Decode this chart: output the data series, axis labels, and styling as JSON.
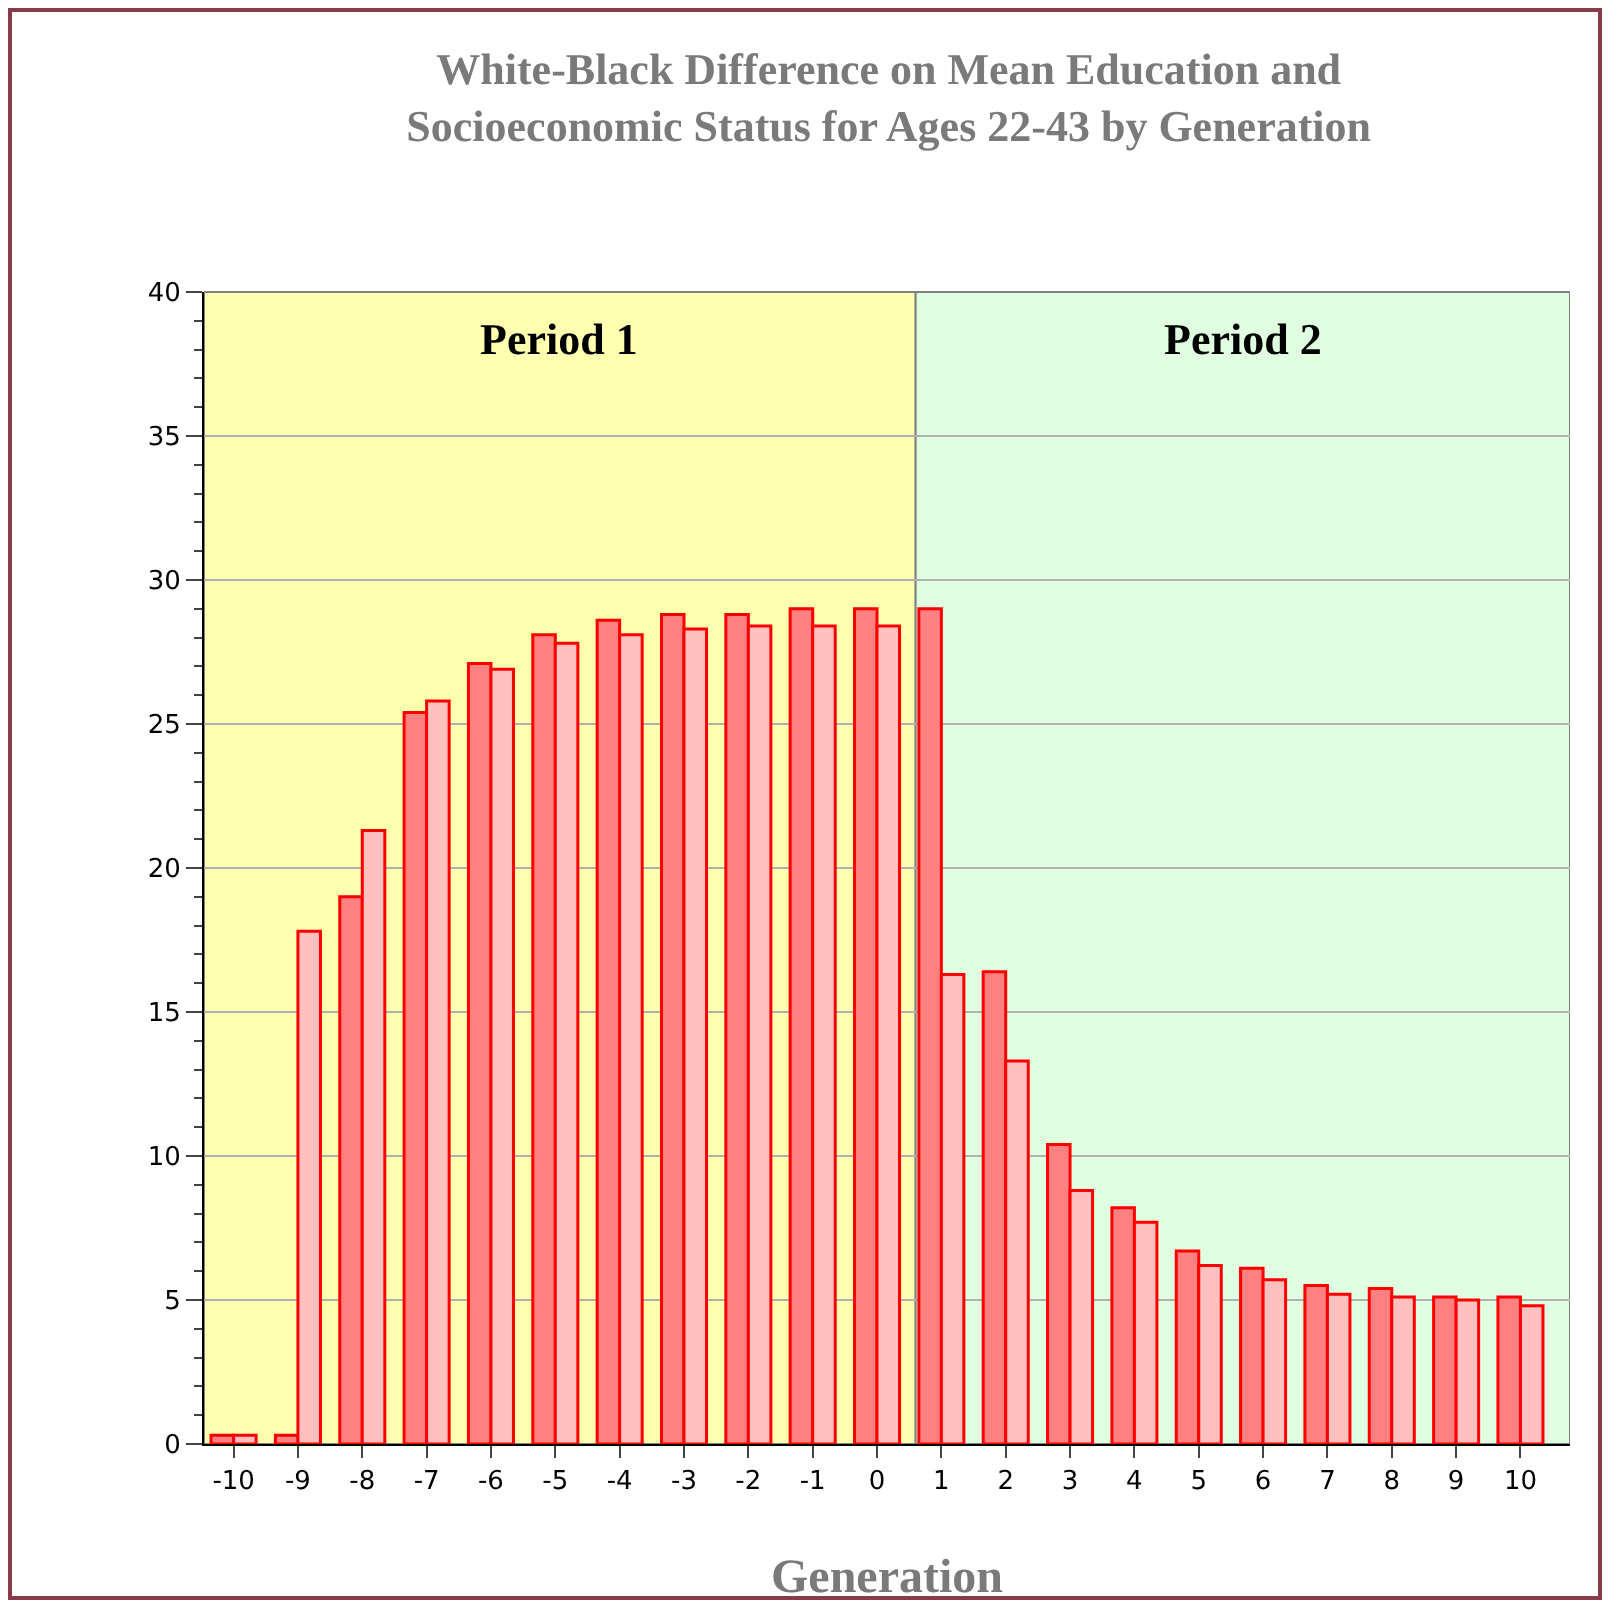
{
  "chart_data": {
    "type": "bar",
    "title": "White-Black Difference on Mean Education and Socioeconomic Status for Ages 22-43 by Generation",
    "xlabel": "Generation",
    "x": [
      -10,
      -9,
      -8,
      -7,
      -6,
      -5,
      -4,
      -3,
      -2,
      -1,
      0,
      1,
      2,
      3,
      4,
      5,
      6,
      7,
      8,
      9,
      10
    ],
    "series": [
      {
        "color": "#ff8080",
        "values": [
          0.3,
          0.3,
          19.0,
          25.4,
          27.1,
          28.1,
          28.6,
          28.8,
          28.8,
          29.0,
          29.0,
          29.0,
          16.4,
          10.4,
          8.2,
          6.7,
          6.1,
          5.5,
          5.4,
          5.1,
          5.1
        ]
      },
      {
        "color": "#ffc0c0",
        "values": [
          0.3,
          17.8,
          21.3,
          25.8,
          26.9,
          27.8,
          28.1,
          28.3,
          28.4,
          28.4,
          28.4,
          16.3,
          13.3,
          8.8,
          7.7,
          6.2,
          5.7,
          5.2,
          5.1,
          5.0,
          4.8
        ]
      }
    ],
    "xlim": [
      -10.46,
      10.77
    ],
    "xticks": [
      -10,
      -9,
      -8,
      -7,
      -6,
      -5,
      -4,
      -3,
      -2,
      -1,
      0,
      1,
      2,
      3,
      4,
      5,
      6,
      7,
      8,
      9,
      10
    ],
    "ylim": [
      0,
      40
    ],
    "yticks": [
      0,
      5,
      10,
      15,
      20,
      25,
      30,
      35,
      40
    ],
    "bands": [
      {
        "axis": "x",
        "from": -10.46,
        "to": 0.6,
        "label": "Period 1",
        "color": "#ffffb0"
      },
      {
        "axis": "x",
        "from": 0.6,
        "to": 10.77,
        "label": "Period 2",
        "color": "#e0ffe0"
      }
    ],
    "grid": "y"
  }
}
